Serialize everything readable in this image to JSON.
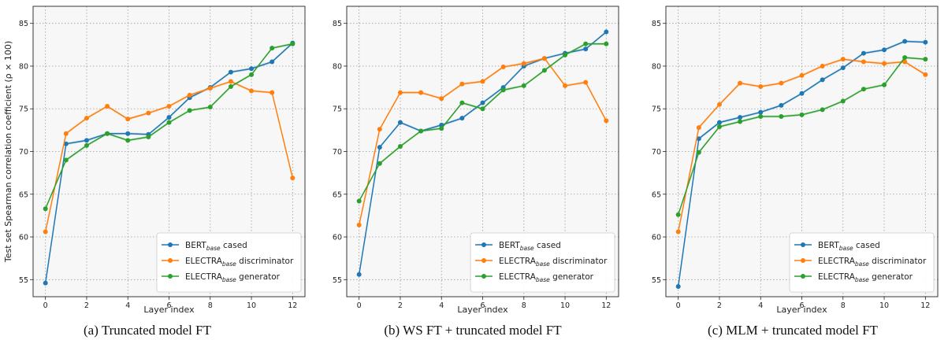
{
  "chart_data": [
    {
      "type": "line",
      "caption": "(a) Truncated model FT",
      "xlabel": "Layer index",
      "ylabel": "Test set Spearman correlation coefficient (ρ × 100)",
      "xlim": [
        -0.6,
        12.6
      ],
      "ylim": [
        53,
        87
      ],
      "x_ticks": [
        "0",
        "2",
        "4",
        "6",
        "8",
        "10",
        "12"
      ],
      "y_ticks": [
        "55",
        "60",
        "65",
        "70",
        "75",
        "80",
        "85"
      ],
      "grid": true,
      "legend_position": "lower-right",
      "x": [
        0,
        1,
        2,
        3,
        4,
        5,
        6,
        7,
        8,
        9,
        10,
        11,
        12
      ],
      "series": [
        {
          "name": "BERT",
          "name_sub": "base",
          "name_suffix": " cased",
          "color": "#1f77b4",
          "values": [
            54.6,
            70.9,
            71.3,
            72.1,
            72.1,
            72.0,
            74.0,
            76.3,
            77.5,
            79.3,
            79.7,
            80.5,
            82.7
          ]
        },
        {
          "name": "ELECTRA",
          "name_sub": "base",
          "name_suffix": " discriminator",
          "color": "#ff7f0e",
          "values": [
            60.6,
            72.1,
            73.9,
            75.3,
            73.8,
            74.5,
            75.3,
            76.6,
            77.4,
            78.2,
            77.1,
            76.9,
            66.9
          ]
        },
        {
          "name": "ELECTRA",
          "name_sub": "base",
          "name_suffix": " generator",
          "color": "#2ca02c",
          "values": [
            63.3,
            69.0,
            70.7,
            72.1,
            71.3,
            71.7,
            73.4,
            74.8,
            75.2,
            77.6,
            79.0,
            82.1,
            82.6
          ]
        }
      ]
    },
    {
      "type": "line",
      "caption": "(b) WS FT + truncated model FT",
      "xlabel": "Layer index",
      "ylabel": "",
      "xlim": [
        -0.6,
        12.6
      ],
      "ylim": [
        53,
        87
      ],
      "x_ticks": [
        "0",
        "2",
        "4",
        "6",
        "8",
        "10",
        "12"
      ],
      "y_ticks": [
        "55",
        "60",
        "65",
        "70",
        "75",
        "80",
        "85"
      ],
      "grid": true,
      "legend_position": "lower-right",
      "x": [
        0,
        1,
        2,
        3,
        4,
        5,
        6,
        7,
        8,
        9,
        10,
        11,
        12
      ],
      "series": [
        {
          "name": "BERT",
          "name_sub": "base",
          "name_suffix": " cased",
          "color": "#1f77b4",
          "values": [
            55.6,
            70.5,
            73.4,
            72.4,
            73.1,
            73.9,
            75.7,
            77.5,
            80.0,
            80.9,
            81.5,
            82.0,
            84.0
          ]
        },
        {
          "name": "ELECTRA",
          "name_sub": "base",
          "name_suffix": " discriminator",
          "color": "#ff7f0e",
          "values": [
            61.4,
            72.6,
            76.9,
            76.9,
            76.2,
            77.9,
            78.2,
            79.9,
            80.3,
            80.9,
            77.7,
            78.1,
            73.6
          ]
        },
        {
          "name": "ELECTRA",
          "name_sub": "base",
          "name_suffix": " generator",
          "color": "#2ca02c",
          "values": [
            64.2,
            68.6,
            70.6,
            72.4,
            72.7,
            75.7,
            75.0,
            77.2,
            77.7,
            79.5,
            81.3,
            82.6,
            82.6
          ]
        }
      ]
    },
    {
      "type": "line",
      "caption": "(c) MLM + truncated model FT",
      "xlabel": "Layer index",
      "ylabel": "",
      "xlim": [
        -0.6,
        12.6
      ],
      "ylim": [
        53,
        87
      ],
      "x_ticks": [
        "0",
        "2",
        "4",
        "6",
        "8",
        "10",
        "12"
      ],
      "y_ticks": [
        "55",
        "60",
        "65",
        "70",
        "75",
        "80",
        "85"
      ],
      "grid": true,
      "legend_position": "lower-right",
      "x": [
        0,
        1,
        2,
        3,
        4,
        5,
        6,
        7,
        8,
        9,
        10,
        11,
        12
      ],
      "series": [
        {
          "name": "BERT",
          "name_sub": "base",
          "name_suffix": " cased",
          "color": "#1f77b4",
          "values": [
            54.2,
            71.5,
            73.4,
            74.0,
            74.6,
            75.4,
            76.8,
            78.4,
            79.8,
            81.5,
            81.9,
            82.9,
            82.8
          ]
        },
        {
          "name": "ELECTRA",
          "name_sub": "base",
          "name_suffix": " discriminator",
          "color": "#ff7f0e",
          "values": [
            60.6,
            72.8,
            75.5,
            78.0,
            77.6,
            78.0,
            78.9,
            80.0,
            80.8,
            80.5,
            80.3,
            80.5,
            79.0
          ]
        },
        {
          "name": "ELECTRA",
          "name_sub": "base",
          "name_suffix": " generator",
          "color": "#2ca02c",
          "values": [
            62.6,
            69.9,
            72.9,
            73.5,
            74.1,
            74.1,
            74.3,
            74.9,
            75.9,
            77.3,
            77.8,
            81.0,
            80.8
          ]
        }
      ]
    }
  ]
}
